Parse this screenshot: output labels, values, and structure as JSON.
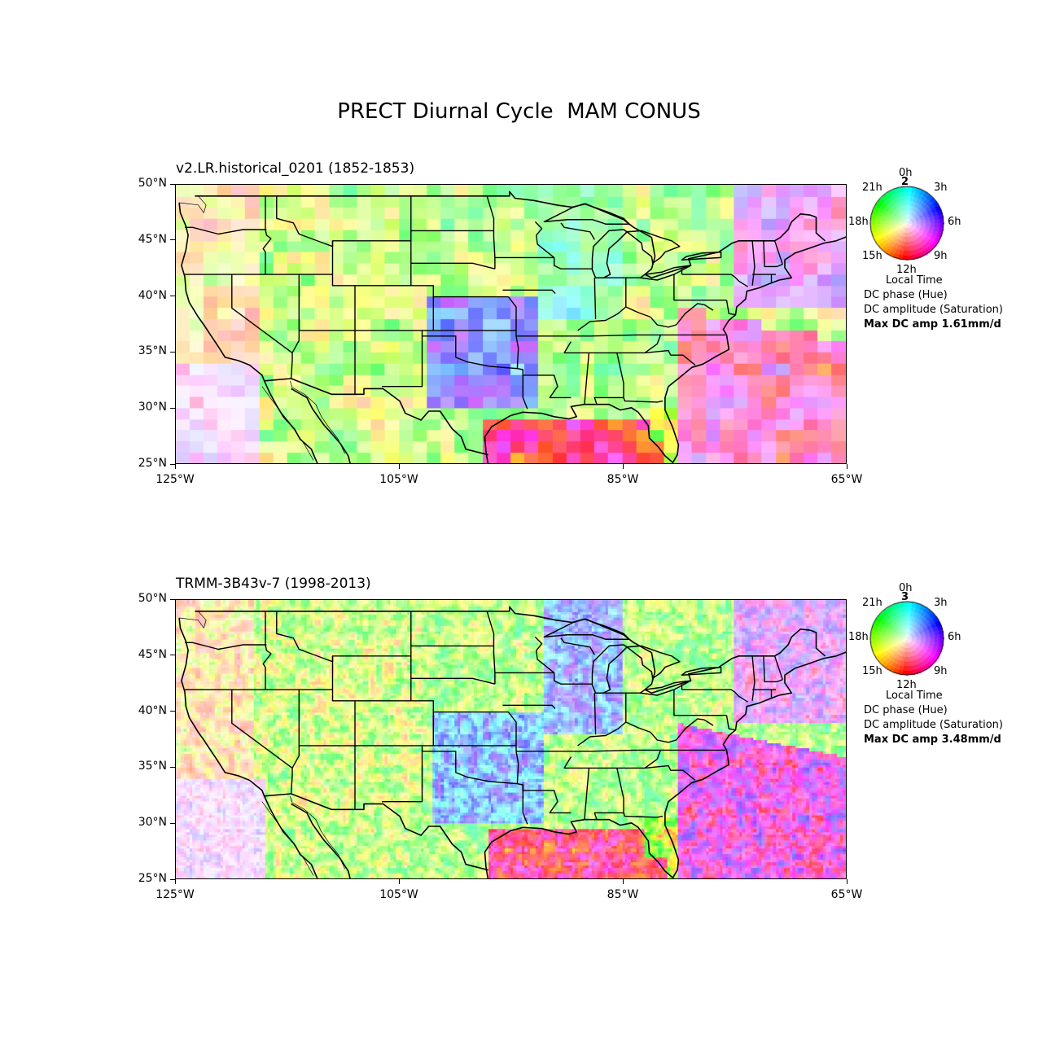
{
  "title": "PRECT Diurnal Cycle  MAM CONUS",
  "panels": [
    {
      "title": "v2.LR.historical_0201 (1852-1853)",
      "wheel_top_number": "2",
      "legend": {
        "local_time": "Local Time",
        "phase": "DC phase (Hue)",
        "amplitude": "DC amplitude (Saturation)",
        "max_amp": "Max DC amp 1.61mm/d"
      },
      "pixel_style": "coarse"
    },
    {
      "title": "TRMM-3B43v-7 (1998-2013)",
      "wheel_top_number": "3",
      "legend": {
        "local_time": "Local Time",
        "phase": "DC phase (Hue)",
        "amplitude": "DC amplitude (Saturation)",
        "max_amp": "Max DC amp 3.48mm/d"
      },
      "pixel_style": "fine"
    }
  ],
  "wheel_labels": {
    "top": "0h",
    "top_right": "3h",
    "right": "6h",
    "bottom_right": "9h",
    "bottom": "12h",
    "bottom_left": "15h",
    "left": "18h",
    "top_left": "21h"
  },
  "axes": {
    "lon_ticks": [
      "125°W",
      "105°W",
      "85°W",
      "65°W"
    ],
    "lat_ticks": [
      "50°N",
      "45°N",
      "40°N",
      "35°N",
      "30°N",
      "25°N"
    ],
    "lon_range": [
      -125,
      -65
    ],
    "lat_range": [
      25,
      50
    ]
  }
}
